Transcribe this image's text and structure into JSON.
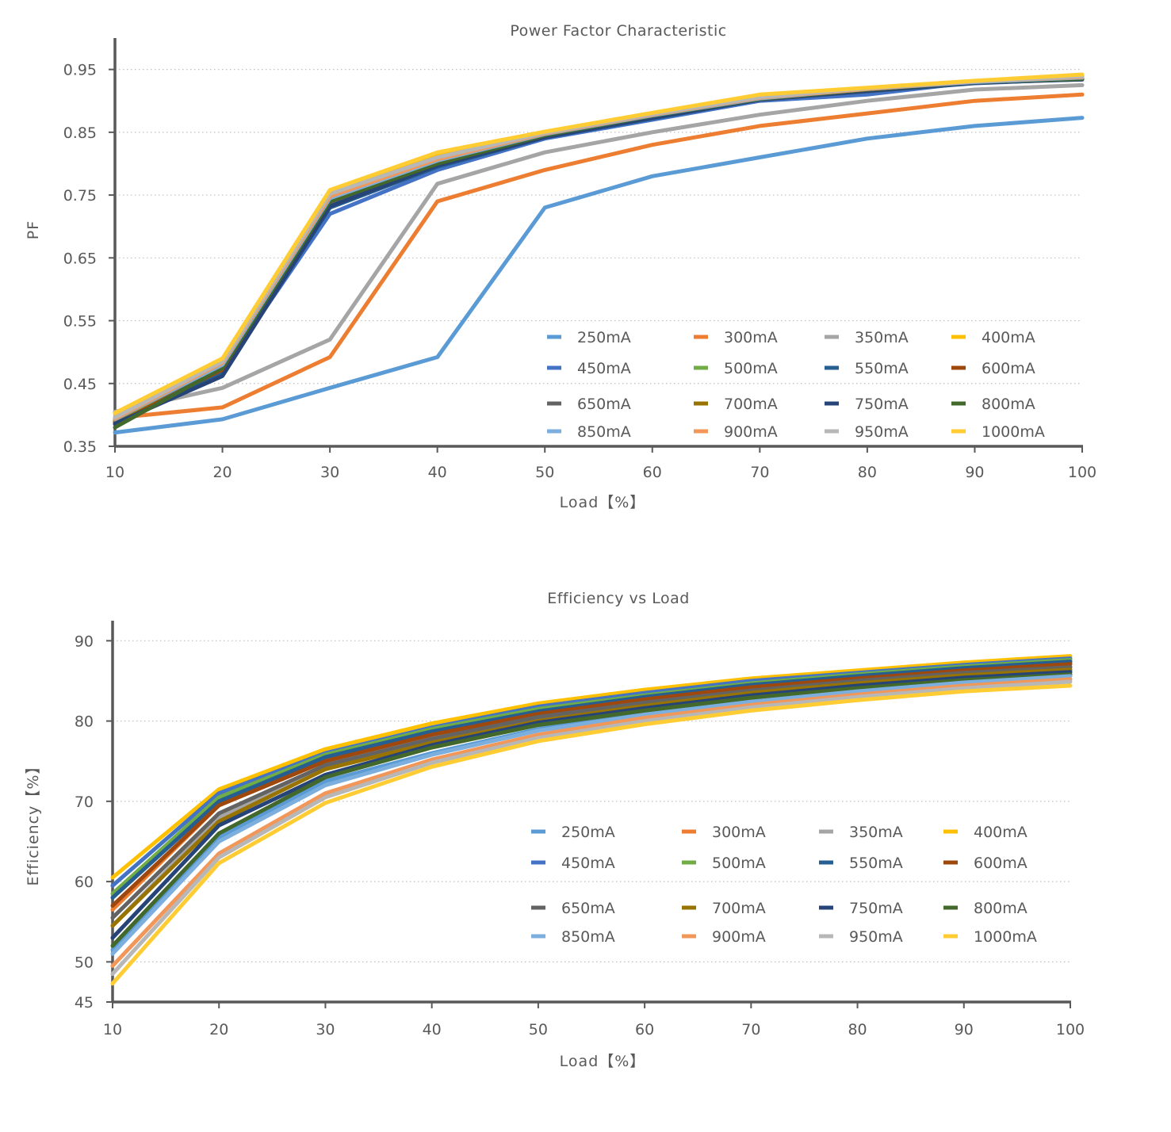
{
  "chart_data": [
    {
      "type": "line",
      "title": "Power Factor Characteristic",
      "xlabel": "Load【%】",
      "ylabel": "PF",
      "x": [
        10,
        20,
        30,
        40,
        50,
        60,
        70,
        80,
        90,
        100
      ],
      "xticks": [
        "10",
        "20",
        "30",
        "40",
        "50",
        "60",
        "70",
        "80",
        "90",
        "100"
      ],
      "yticks": [
        0.35,
        0.45,
        0.55,
        0.65,
        0.75,
        0.85,
        0.95
      ],
      "ytick_labels": [
        "0.35",
        "0.45",
        "0.55",
        "0.65",
        "0.75",
        "0.85",
        "0.95"
      ],
      "xlim": [
        10,
        100
      ],
      "ylim": [
        0.35,
        1.0
      ],
      "grid": "horizontal-dotted",
      "legend_position": "bottom-right",
      "series": [
        {
          "name": "250mA",
          "color": "#5b9bd5",
          "values": [
            0.372,
            0.393,
            0.443,
            0.492,
            0.73,
            0.78,
            0.81,
            0.84,
            0.86,
            0.873
          ]
        },
        {
          "name": "300mA",
          "color": "#ed7d31",
          "values": [
            0.395,
            0.412,
            0.492,
            0.74,
            0.79,
            0.83,
            0.86,
            0.88,
            0.9,
            0.91
          ]
        },
        {
          "name": "350mA",
          "color": "#a5a5a5",
          "values": [
            0.405,
            0.443,
            0.52,
            0.768,
            0.818,
            0.85,
            0.878,
            0.9,
            0.918,
            0.925
          ]
        },
        {
          "name": "400mA",
          "color": "#ffc000",
          "values": [
            0.402,
            0.488,
            0.755,
            0.815,
            0.85,
            0.88,
            0.908,
            0.92,
            0.93,
            0.94
          ]
        },
        {
          "name": "450mA",
          "color": "#4472c4",
          "values": [
            0.385,
            0.47,
            0.72,
            0.79,
            0.84,
            0.87,
            0.9,
            0.91,
            0.93,
            0.938
          ]
        },
        {
          "name": "500mA",
          "color": "#70ad47",
          "values": [
            0.39,
            0.48,
            0.74,
            0.8,
            0.845,
            0.875,
            0.902,
            0.918,
            0.93,
            0.936
          ]
        },
        {
          "name": "550mA",
          "color": "#255e91",
          "values": [
            0.388,
            0.465,
            0.73,
            0.795,
            0.842,
            0.872,
            0.902,
            0.915,
            0.928,
            0.935
          ]
        },
        {
          "name": "600mA",
          "color": "#9e480e",
          "values": [
            0.389,
            0.472,
            0.735,
            0.798,
            0.843,
            0.874,
            0.902,
            0.916,
            0.929,
            0.935
          ]
        },
        {
          "name": "650mA",
          "color": "#636363",
          "values": [
            0.392,
            0.478,
            0.738,
            0.8,
            0.845,
            0.876,
            0.903,
            0.918,
            0.93,
            0.934
          ]
        },
        {
          "name": "700mA",
          "color": "#997300",
          "values": [
            0.39,
            0.482,
            0.742,
            0.802,
            0.846,
            0.877,
            0.904,
            0.918,
            0.93,
            0.935
          ]
        },
        {
          "name": "750mA",
          "color": "#264478",
          "values": [
            0.386,
            0.462,
            0.732,
            0.797,
            0.842,
            0.873,
            0.902,
            0.916,
            0.929,
            0.934
          ]
        },
        {
          "name": "800mA",
          "color": "#43682b",
          "values": [
            0.38,
            0.475,
            0.74,
            0.8,
            0.845,
            0.876,
            0.903,
            0.918,
            0.93,
            0.935
          ]
        },
        {
          "name": "850mA",
          "color": "#7cafdd",
          "values": [
            0.393,
            0.48,
            0.745,
            0.805,
            0.847,
            0.877,
            0.904,
            0.919,
            0.93,
            0.937
          ]
        },
        {
          "name": "900mA",
          "color": "#f1975a",
          "values": [
            0.394,
            0.483,
            0.748,
            0.807,
            0.848,
            0.878,
            0.905,
            0.919,
            0.931,
            0.938
          ]
        },
        {
          "name": "950mA",
          "color": "#b7b7b7",
          "values": [
            0.396,
            0.485,
            0.752,
            0.81,
            0.849,
            0.879,
            0.906,
            0.92,
            0.931,
            0.939
          ]
        },
        {
          "name": "1000mA",
          "color": "#ffcd33",
          "values": [
            0.403,
            0.49,
            0.758,
            0.818,
            0.851,
            0.881,
            0.91,
            0.921,
            0.932,
            0.942
          ]
        }
      ]
    },
    {
      "type": "line",
      "title": "Efficiency vs Load",
      "xlabel": "Load【%】",
      "ylabel": "Efficiency【%】",
      "x": [
        10,
        20,
        30,
        40,
        50,
        60,
        70,
        80,
        90,
        100
      ],
      "xticks": [
        "10",
        "20",
        "30",
        "40",
        "50",
        "60",
        "70",
        "80",
        "90",
        "100"
      ],
      "yticks": [
        45,
        50,
        60,
        70,
        80,
        90
      ],
      "ytick_labels": [
        "45",
        "50",
        "60",
        "70",
        "80",
        "90"
      ],
      "gridlines": [
        50,
        60,
        70,
        80,
        90
      ],
      "xlim": [
        10,
        100
      ],
      "ylim": [
        45,
        92.5
      ],
      "grid": "horizontal-dotted",
      "legend_position": "bottom-right",
      "series": [
        {
          "name": "250mA",
          "color": "#5b9bd5",
          "values": [
            51.5,
            65.5,
            72.5,
            76.0,
            79.0,
            81.0,
            82.8,
            84.0,
            85.3,
            86.3
          ]
        },
        {
          "name": "300mA",
          "color": "#ed7d31",
          "values": [
            56.5,
            69.5,
            75.0,
            78.5,
            81.0,
            82.8,
            84.3,
            85.5,
            86.5,
            87.3
          ]
        },
        {
          "name": "350mA",
          "color": "#a5a5a5",
          "values": [
            54.5,
            68.0,
            74.0,
            77.5,
            80.2,
            82.2,
            83.8,
            85.0,
            86.0,
            86.8
          ]
        },
        {
          "name": "400mA",
          "color": "#ffc000",
          "values": [
            60.5,
            71.5,
            76.5,
            79.7,
            82.2,
            83.9,
            85.3,
            86.3,
            87.3,
            88.1
          ]
        },
        {
          "name": "450mA",
          "color": "#4472c4",
          "values": [
            59.5,
            71.0,
            76.0,
            79.2,
            81.8,
            83.5,
            85.0,
            86.0,
            87.0,
            87.8
          ]
        },
        {
          "name": "500mA",
          "color": "#70ad47",
          "values": [
            58.5,
            70.5,
            75.8,
            79.0,
            81.5,
            83.2,
            84.7,
            85.8,
            86.8,
            87.6
          ]
        },
        {
          "name": "550mA",
          "color": "#255e91",
          "values": [
            58.0,
            70.0,
            75.5,
            78.7,
            81.2,
            83.0,
            84.5,
            85.6,
            86.6,
            87.4
          ]
        },
        {
          "name": "600mA",
          "color": "#9e480e",
          "values": [
            57.0,
            69.5,
            75.0,
            78.3,
            80.9,
            82.7,
            84.2,
            85.3,
            86.3,
            87.1
          ]
        },
        {
          "name": "650mA",
          "color": "#636363",
          "values": [
            55.5,
            68.5,
            74.5,
            77.8,
            80.5,
            82.3,
            83.8,
            85.0,
            86.0,
            86.7
          ]
        },
        {
          "name": "700mA",
          "color": "#997300",
          "values": [
            54.5,
            67.5,
            74.0,
            77.3,
            80.0,
            81.9,
            83.5,
            84.7,
            85.7,
            86.4
          ]
        },
        {
          "name": "750mA",
          "color": "#264478",
          "values": [
            53.0,
            67.0,
            73.3,
            77.0,
            79.8,
            81.6,
            83.2,
            84.4,
            85.4,
            86.1
          ]
        },
        {
          "name": "800mA",
          "color": "#43682b",
          "values": [
            52.0,
            66.0,
            73.0,
            76.7,
            79.5,
            81.3,
            82.9,
            84.1,
            85.1,
            85.8
          ]
        },
        {
          "name": "850mA",
          "color": "#7cafdd",
          "values": [
            51.0,
            65.0,
            72.0,
            75.8,
            78.8,
            80.8,
            82.4,
            83.7,
            84.8,
            85.6
          ]
        },
        {
          "name": "900mA",
          "color": "#f1975a",
          "values": [
            49.5,
            63.5,
            71.0,
            75.2,
            78.3,
            80.4,
            82.0,
            83.3,
            84.4,
            85.2
          ]
        },
        {
          "name": "950mA",
          "color": "#b7b7b7",
          "values": [
            48.5,
            63.0,
            70.5,
            74.8,
            77.9,
            80.0,
            81.7,
            83.0,
            84.1,
            84.9
          ]
        },
        {
          "name": "1000mA",
          "color": "#ffcd33",
          "values": [
            47.3,
            62.3,
            69.8,
            74.3,
            77.5,
            79.6,
            81.3,
            82.6,
            83.7,
            84.4
          ]
        }
      ]
    }
  ]
}
